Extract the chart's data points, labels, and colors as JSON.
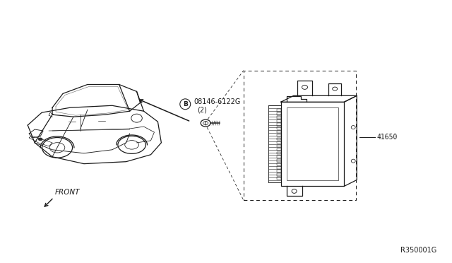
{
  "bg_color": "#ffffff",
  "line_color": "#1a1a1a",
  "fig_width": 6.4,
  "fig_height": 3.72,
  "dpi": 100,
  "diagram_ref": "R350001G",
  "part_number_tcu": "41650",
  "part_number_bolt": "08146-6122G",
  "bolt_qty": "(2)",
  "bolt_label_circle": "B",
  "front_label": "FRONT"
}
